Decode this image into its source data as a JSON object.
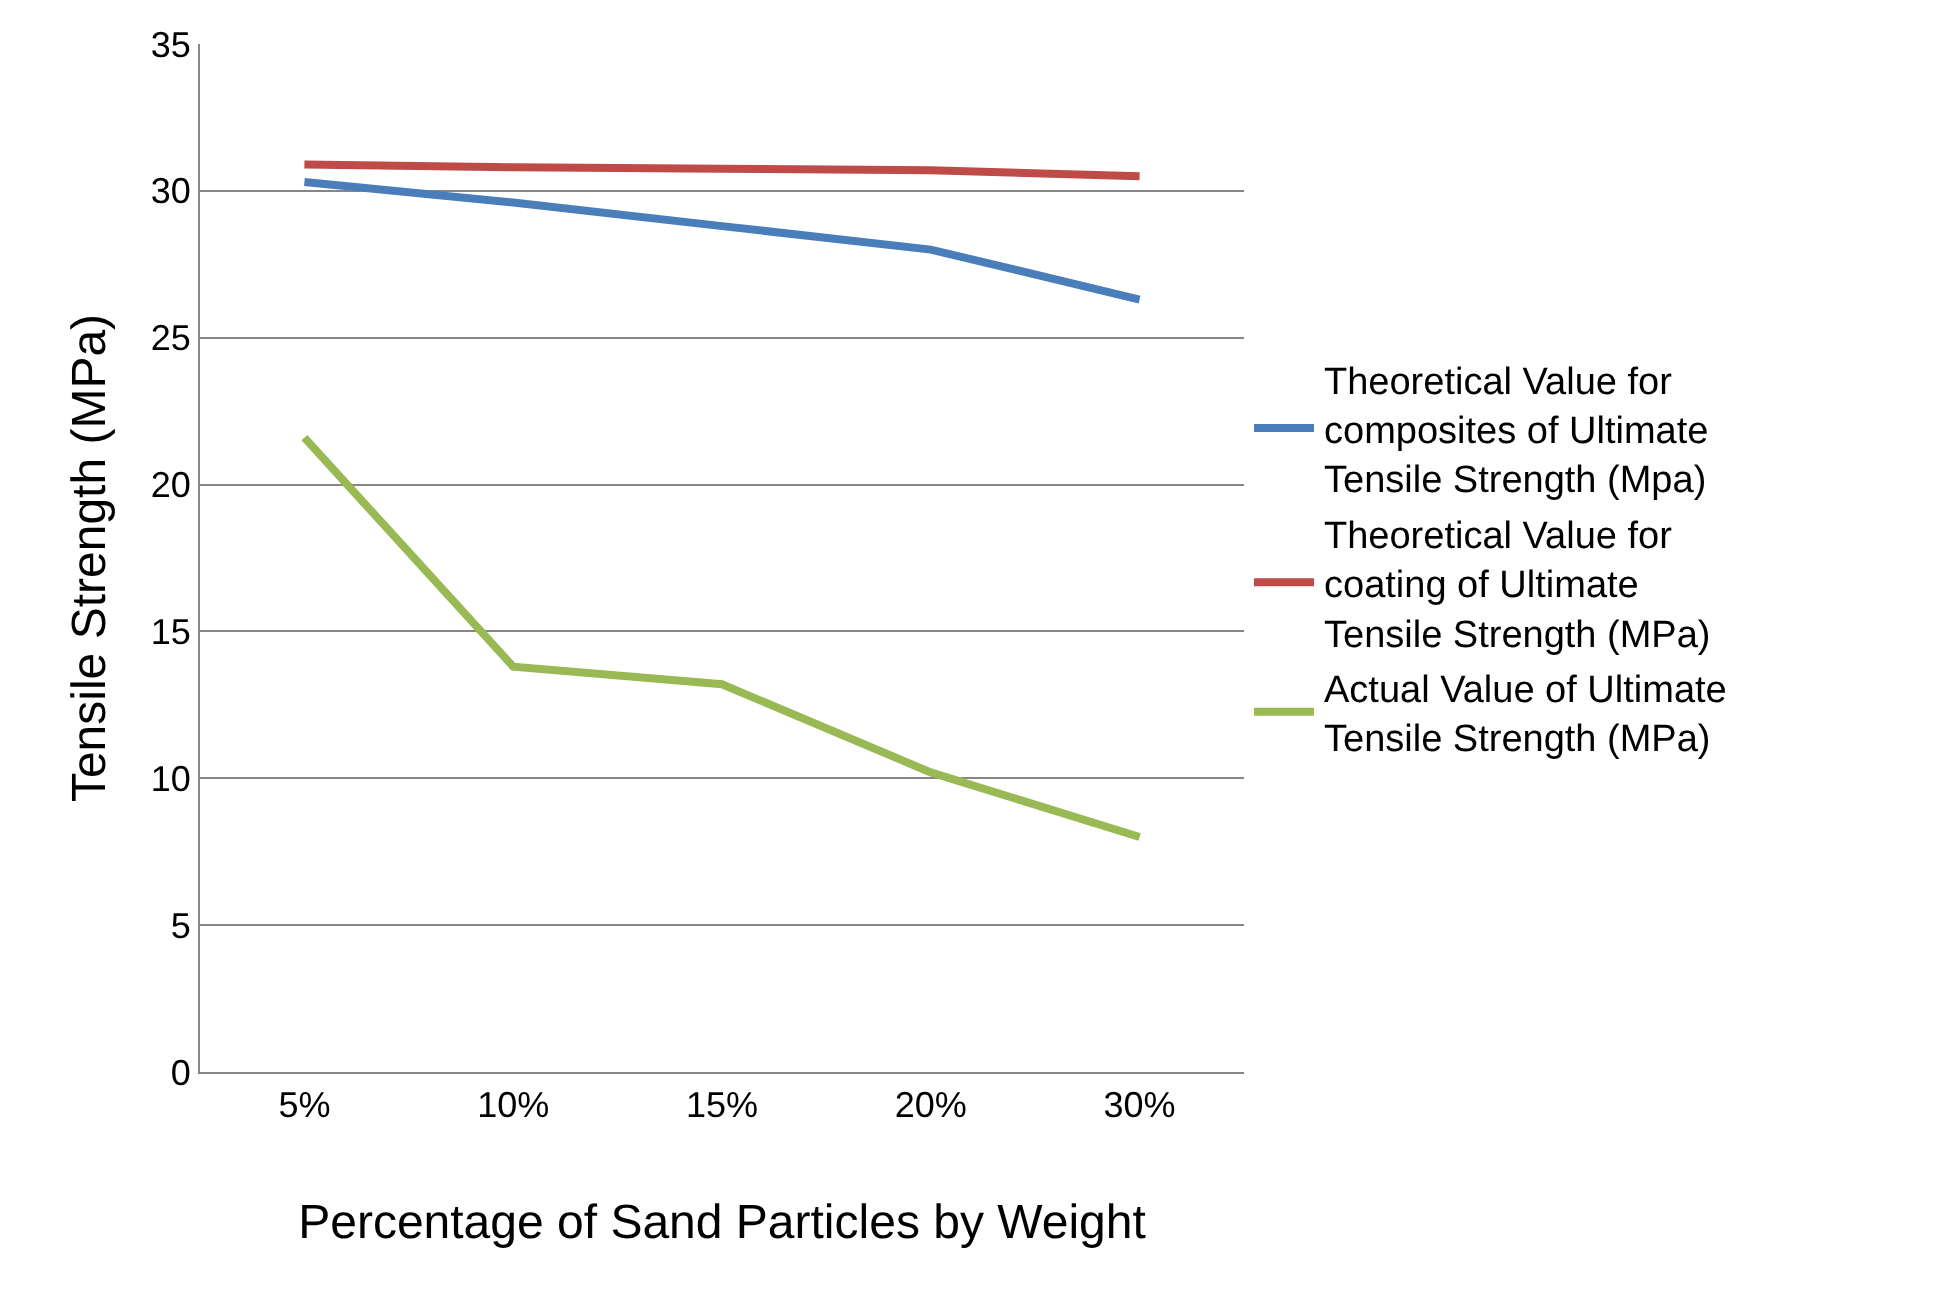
{
  "chart_data": {
    "type": "line",
    "xlabel": "Percentage of Sand Particles by Weight",
    "ylabel": "Tensile Strength (MPa)",
    "categories": [
      "5%",
      "10%",
      "15%",
      "20%",
      "30%"
    ],
    "series": [
      {
        "name": "Theoretical Value for composites of Ultimate Tensile Strength (Mpa)",
        "color": "#4a7ebb",
        "values": [
          30.3,
          29.6,
          28.8,
          28.0,
          26.3
        ]
      },
      {
        "name": "Theoretical Value for coating of Ultimate Tensile Strength (MPa)",
        "color": "#be4b48",
        "values": [
          30.9,
          30.8,
          30.75,
          30.7,
          30.5
        ]
      },
      {
        "name": "Actual Value of Ultimate Tensile Strength (MPa)",
        "color": "#98b954",
        "values": [
          21.6,
          13.8,
          13.2,
          10.2,
          8.0
        ]
      }
    ],
    "ylim": [
      0,
      35
    ],
    "yticks": [
      0,
      5,
      10,
      15,
      20,
      25,
      30,
      35
    ],
    "grid": "y",
    "legend": "right",
    "marker": "none",
    "line_style": "solid"
  }
}
